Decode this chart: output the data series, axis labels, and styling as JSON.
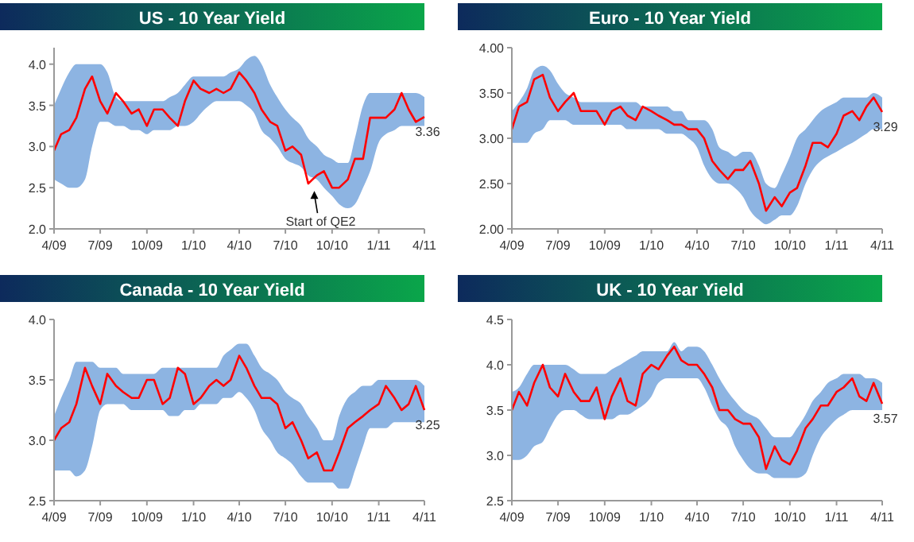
{
  "chart_data": [
    {
      "type": "line",
      "title": "US - 10 Year Yield",
      "x": [
        "2009-04-01",
        "2009-04-15",
        "2009-05-01",
        "2009-05-15",
        "2009-06-01",
        "2009-06-15",
        "2009-07-01",
        "2009-07-15",
        "2009-08-01",
        "2009-08-15",
        "2009-09-01",
        "2009-09-15",
        "2009-10-01",
        "2009-10-15",
        "2009-11-01",
        "2009-11-15",
        "2009-12-01",
        "2009-12-15",
        "2010-01-01",
        "2010-01-15",
        "2010-02-01",
        "2010-02-15",
        "2010-03-01",
        "2010-03-15",
        "2010-04-01",
        "2010-04-15",
        "2010-05-01",
        "2010-05-15",
        "2010-06-01",
        "2010-06-15",
        "2010-07-01",
        "2010-07-15",
        "2010-08-01",
        "2010-08-15",
        "2010-09-01",
        "2010-09-15",
        "2010-10-01",
        "2010-10-15",
        "2010-11-01",
        "2010-11-15",
        "2010-12-01",
        "2010-12-15",
        "2011-01-01",
        "2011-01-15",
        "2011-02-01",
        "2011-02-15",
        "2011-03-01",
        "2011-03-15",
        "2011-04-01"
      ],
      "xlim": [
        "2009-04-01",
        "2011-04-01"
      ],
      "xticks": [
        {
          "value": "2009-04-01",
          "label": "4/09"
        },
        {
          "value": "2009-07-01",
          "label": "7/09"
        },
        {
          "value": "2009-10-01",
          "label": "10/09"
        },
        {
          "value": "2010-01-01",
          "label": "1/10"
        },
        {
          "value": "2010-04-01",
          "label": "4/10"
        },
        {
          "value": "2010-07-01",
          "label": "7/10"
        },
        {
          "value": "2010-10-01",
          "label": "10/10"
        },
        {
          "value": "2011-01-01",
          "label": "1/11"
        },
        {
          "value": "2011-04-01",
          "label": "4/11"
        }
      ],
      "ylim": [
        2.0,
        4.2
      ],
      "yticks": [
        {
          "value": 2,
          "label": "2.0"
        },
        2.5,
        {
          "value": 3,
          "label": "3.0"
        },
        3.5,
        {
          "value": 4,
          "label": "4.0"
        }
      ],
      "series": [
        {
          "color": "#ff0000",
          "values": [
            2.95,
            3.15,
            3.2,
            3.35,
            3.7,
            3.85,
            3.55,
            3.4,
            3.65,
            3.55,
            3.4,
            3.45,
            3.25,
            3.45,
            3.45,
            3.35,
            3.25,
            3.55,
            3.8,
            3.7,
            3.65,
            3.7,
            3.65,
            3.7,
            3.9,
            3.8,
            3.65,
            3.45,
            3.3,
            3.25,
            2.95,
            3.0,
            2.9,
            2.55,
            2.65,
            2.7,
            2.5,
            2.5,
            2.6,
            2.85,
            2.85,
            3.35,
            3.35,
            3.35,
            3.45,
            3.65,
            3.45,
            3.3,
            3.36
          ],
          "upper": [
            3.5,
            3.7,
            3.9,
            4.0,
            4.0,
            4.0,
            4.0,
            3.9,
            3.6,
            3.55,
            3.55,
            3.55,
            3.55,
            3.55,
            3.55,
            3.6,
            3.65,
            3.75,
            3.85,
            3.85,
            3.85,
            3.85,
            3.85,
            3.9,
            3.95,
            4.05,
            4.1,
            4.0,
            3.75,
            3.6,
            3.45,
            3.35,
            3.25,
            3.1,
            3.0,
            2.9,
            2.85,
            2.8,
            2.8,
            3.1,
            3.5,
            3.65,
            3.65,
            3.65,
            3.65,
            3.65,
            3.65,
            3.65,
            3.6
          ],
          "lower": [
            2.6,
            2.55,
            2.5,
            2.5,
            2.6,
            3.0,
            3.3,
            3.3,
            3.25,
            3.25,
            3.2,
            3.2,
            3.15,
            3.2,
            3.2,
            3.2,
            3.25,
            3.25,
            3.3,
            3.4,
            3.5,
            3.55,
            3.55,
            3.55,
            3.55,
            3.5,
            3.4,
            3.2,
            3.1,
            3.0,
            2.85,
            2.8,
            2.75,
            2.65,
            2.6,
            2.5,
            2.4,
            2.3,
            2.25,
            2.3,
            2.5,
            2.7,
            3.05,
            3.15,
            3.2,
            3.25,
            3.25,
            3.25,
            3.25
          ]
        }
      ],
      "annotations": [
        {
          "text": "3.36",
          "x": "2011-04-01",
          "y": 3.36
        },
        {
          "text": "Start of QE2",
          "x": "2010-08-27",
          "y": 2.5
        }
      ]
    },
    {
      "type": "line",
      "title": "Euro - 10 Year Yield",
      "x": [
        "2009-04-01",
        "2009-04-15",
        "2009-05-01",
        "2009-05-15",
        "2009-06-01",
        "2009-06-15",
        "2009-07-01",
        "2009-07-15",
        "2009-08-01",
        "2009-08-15",
        "2009-09-01",
        "2009-09-15",
        "2009-10-01",
        "2009-10-15",
        "2009-11-01",
        "2009-11-15",
        "2009-12-01",
        "2009-12-15",
        "2010-01-01",
        "2010-01-15",
        "2010-02-01",
        "2010-02-15",
        "2010-03-01",
        "2010-03-15",
        "2010-04-01",
        "2010-04-15",
        "2010-05-01",
        "2010-05-15",
        "2010-06-01",
        "2010-06-15",
        "2010-07-01",
        "2010-07-15",
        "2010-08-01",
        "2010-08-15",
        "2010-09-01",
        "2010-09-15",
        "2010-10-01",
        "2010-10-15",
        "2010-11-01",
        "2010-11-15",
        "2010-12-01",
        "2010-12-15",
        "2011-01-01",
        "2011-01-15",
        "2011-02-01",
        "2011-02-15",
        "2011-03-01",
        "2011-03-15",
        "2011-04-01"
      ],
      "xlim": [
        "2009-04-01",
        "2011-04-01"
      ],
      "xticks": [
        {
          "value": "2009-04-01",
          "label": "4/09"
        },
        {
          "value": "2009-07-01",
          "label": "7/09"
        },
        {
          "value": "2009-10-01",
          "label": "10/09"
        },
        {
          "value": "2010-01-01",
          "label": "1/10"
        },
        {
          "value": "2010-04-01",
          "label": "4/10"
        },
        {
          "value": "2010-07-01",
          "label": "7/10"
        },
        {
          "value": "2010-10-01",
          "label": "10/10"
        },
        {
          "value": "2011-01-01",
          "label": "1/11"
        },
        {
          "value": "2011-04-01",
          "label": "4/11"
        }
      ],
      "ylim": [
        2.0,
        4.0
      ],
      "yticks": [
        {
          "value": 2,
          "label": "2.00"
        },
        {
          "value": 2.5,
          "label": "2.50"
        },
        {
          "value": 3,
          "label": "3.00"
        },
        {
          "value": 3.5,
          "label": "3.50"
        },
        {
          "value": 4,
          "label": "4.00"
        }
      ],
      "series": [
        {
          "color": "#ff0000",
          "values": [
            3.1,
            3.35,
            3.4,
            3.65,
            3.7,
            3.45,
            3.3,
            3.4,
            3.5,
            3.3,
            3.3,
            3.3,
            3.15,
            3.3,
            3.35,
            3.25,
            3.2,
            3.35,
            3.3,
            3.25,
            3.2,
            3.15,
            3.15,
            3.1,
            3.1,
            3.0,
            2.75,
            2.65,
            2.55,
            2.65,
            2.65,
            2.75,
            2.5,
            2.2,
            2.35,
            2.25,
            2.4,
            2.45,
            2.7,
            2.95,
            2.95,
            2.9,
            3.05,
            3.25,
            3.3,
            3.2,
            3.35,
            3.45,
            3.29
          ],
          "upper": [
            3.3,
            3.4,
            3.55,
            3.75,
            3.8,
            3.75,
            3.6,
            3.5,
            3.45,
            3.4,
            3.4,
            3.4,
            3.4,
            3.4,
            3.4,
            3.4,
            3.4,
            3.35,
            3.35,
            3.35,
            3.35,
            3.3,
            3.3,
            3.2,
            3.2,
            3.2,
            3.1,
            2.9,
            2.85,
            2.8,
            2.85,
            2.85,
            2.7,
            2.5,
            2.45,
            2.6,
            2.8,
            3.0,
            3.1,
            3.2,
            3.3,
            3.35,
            3.4,
            3.45,
            3.45,
            3.45,
            3.45,
            3.5,
            3.45
          ],
          "lower": [
            2.95,
            2.95,
            2.95,
            3.05,
            3.1,
            3.2,
            3.2,
            3.2,
            3.15,
            3.15,
            3.15,
            3.15,
            3.15,
            3.15,
            3.15,
            3.1,
            3.1,
            3.1,
            3.1,
            3.1,
            3.05,
            3.05,
            3.05,
            3.0,
            2.9,
            2.7,
            2.55,
            2.5,
            2.5,
            2.45,
            2.35,
            2.2,
            2.1,
            2.05,
            2.1,
            2.15,
            2.15,
            2.25,
            2.5,
            2.65,
            2.75,
            2.8,
            2.85,
            2.9,
            2.95,
            3.0,
            3.05,
            3.1,
            3.1
          ]
        }
      ],
      "annotations": [
        {
          "text": "3.29",
          "x": "2011-04-01",
          "y": 3.29
        }
      ]
    },
    {
      "type": "line",
      "title": "Canada - 10 Year Yield",
      "x": [
        "2009-04-01",
        "2009-04-15",
        "2009-05-01",
        "2009-05-15",
        "2009-06-01",
        "2009-06-15",
        "2009-07-01",
        "2009-07-15",
        "2009-08-01",
        "2009-08-15",
        "2009-09-01",
        "2009-09-15",
        "2009-10-01",
        "2009-10-15",
        "2009-11-01",
        "2009-11-15",
        "2009-12-01",
        "2009-12-15",
        "2010-01-01",
        "2010-01-15",
        "2010-02-01",
        "2010-02-15",
        "2010-03-01",
        "2010-03-15",
        "2010-04-01",
        "2010-04-15",
        "2010-05-01",
        "2010-05-15",
        "2010-06-01",
        "2010-06-15",
        "2010-07-01",
        "2010-07-15",
        "2010-08-01",
        "2010-08-15",
        "2010-09-01",
        "2010-09-15",
        "2010-10-01",
        "2010-10-15",
        "2010-11-01",
        "2010-11-15",
        "2010-12-01",
        "2010-12-15",
        "2011-01-01",
        "2011-01-15",
        "2011-02-01",
        "2011-02-15",
        "2011-03-01",
        "2011-03-15",
        "2011-04-01"
      ],
      "xlim": [
        "2009-04-01",
        "2011-04-01"
      ],
      "xticks": [
        {
          "value": "2009-04-01",
          "label": "4/09"
        },
        {
          "value": "2009-07-01",
          "label": "7/09"
        },
        {
          "value": "2009-10-01",
          "label": "10/09"
        },
        {
          "value": "2010-01-01",
          "label": "1/10"
        },
        {
          "value": "2010-04-01",
          "label": "4/10"
        },
        {
          "value": "2010-07-01",
          "label": "7/10"
        },
        {
          "value": "2010-10-01",
          "label": "10/10"
        },
        {
          "value": "2011-01-01",
          "label": "1/11"
        },
        {
          "value": "2011-04-01",
          "label": "4/11"
        }
      ],
      "ylim": [
        2.5,
        4.0
      ],
      "yticks": [
        2.5,
        {
          "value": 3,
          "label": "3.0"
        },
        3.5,
        {
          "value": 4,
          "label": "4.0"
        }
      ],
      "series": [
        {
          "color": "#ff0000",
          "values": [
            3.0,
            3.1,
            3.15,
            3.3,
            3.6,
            3.45,
            3.3,
            3.55,
            3.45,
            3.4,
            3.35,
            3.35,
            3.5,
            3.5,
            3.3,
            3.35,
            3.6,
            3.55,
            3.3,
            3.35,
            3.45,
            3.5,
            3.45,
            3.5,
            3.7,
            3.6,
            3.45,
            3.35,
            3.35,
            3.3,
            3.1,
            3.15,
            3.0,
            2.85,
            2.9,
            2.75,
            2.75,
            2.9,
            3.1,
            3.15,
            3.2,
            3.25,
            3.3,
            3.45,
            3.35,
            3.25,
            3.3,
            3.45,
            3.25
          ],
          "upper": [
            3.2,
            3.35,
            3.5,
            3.65,
            3.65,
            3.65,
            3.6,
            3.6,
            3.6,
            3.55,
            3.55,
            3.55,
            3.55,
            3.55,
            3.6,
            3.6,
            3.6,
            3.6,
            3.6,
            3.6,
            3.6,
            3.6,
            3.7,
            3.75,
            3.8,
            3.8,
            3.7,
            3.6,
            3.55,
            3.5,
            3.4,
            3.35,
            3.3,
            3.2,
            3.1,
            3.0,
            3.0,
            3.2,
            3.35,
            3.4,
            3.45,
            3.45,
            3.5,
            3.5,
            3.5,
            3.5,
            3.5,
            3.5,
            3.45
          ],
          "lower": [
            2.75,
            2.75,
            2.75,
            2.7,
            2.75,
            2.95,
            3.25,
            3.3,
            3.3,
            3.3,
            3.25,
            3.25,
            3.25,
            3.25,
            3.25,
            3.2,
            3.2,
            3.25,
            3.25,
            3.3,
            3.3,
            3.3,
            3.35,
            3.35,
            3.4,
            3.35,
            3.25,
            3.1,
            3.0,
            2.9,
            2.85,
            2.8,
            2.7,
            2.65,
            2.65,
            2.65,
            2.65,
            2.6,
            2.6,
            2.75,
            2.95,
            3.1,
            3.1,
            3.1,
            3.15,
            3.15,
            3.15,
            3.15,
            3.15
          ]
        }
      ],
      "annotations": [
        {
          "text": "3.25",
          "x": "2011-04-01",
          "y": 3.25
        }
      ]
    },
    {
      "type": "line",
      "title": "UK - 10 Year Yield",
      "x": [
        "2009-04-01",
        "2009-04-15",
        "2009-05-01",
        "2009-05-15",
        "2009-06-01",
        "2009-06-15",
        "2009-07-01",
        "2009-07-15",
        "2009-08-01",
        "2009-08-15",
        "2009-09-01",
        "2009-09-15",
        "2009-10-01",
        "2009-10-15",
        "2009-11-01",
        "2009-11-15",
        "2009-12-01",
        "2009-12-15",
        "2010-01-01",
        "2010-01-15",
        "2010-02-01",
        "2010-02-15",
        "2010-03-01",
        "2010-03-15",
        "2010-04-01",
        "2010-04-15",
        "2010-05-01",
        "2010-05-15",
        "2010-06-01",
        "2010-06-15",
        "2010-07-01",
        "2010-07-15",
        "2010-08-01",
        "2010-08-15",
        "2010-09-01",
        "2010-09-15",
        "2010-10-01",
        "2010-10-15",
        "2010-11-01",
        "2010-11-15",
        "2010-12-01",
        "2010-12-15",
        "2011-01-01",
        "2011-01-15",
        "2011-02-01",
        "2011-02-15",
        "2011-03-01",
        "2011-03-15",
        "2011-04-01"
      ],
      "xlim": [
        "2009-04-01",
        "2011-04-01"
      ],
      "xticks": [
        {
          "value": "2009-04-01",
          "label": "4/09"
        },
        {
          "value": "2009-07-01",
          "label": "7/09"
        },
        {
          "value": "2009-10-01",
          "label": "10/09"
        },
        {
          "value": "2010-01-01",
          "label": "1/10"
        },
        {
          "value": "2010-04-01",
          "label": "4/10"
        },
        {
          "value": "2010-07-01",
          "label": "7/10"
        },
        {
          "value": "2010-10-01",
          "label": "10/10"
        },
        {
          "value": "2011-01-01",
          "label": "1/11"
        },
        {
          "value": "2011-04-01",
          "label": "4/11"
        }
      ],
      "ylim": [
        2.5,
        4.5
      ],
      "yticks": [
        2.5,
        {
          "value": 3,
          "label": "3.0"
        },
        3.5,
        {
          "value": 4,
          "label": "4.0"
        },
        4.5
      ],
      "series": [
        {
          "color": "#ff0000",
          "values": [
            3.5,
            3.7,
            3.55,
            3.8,
            4.0,
            3.75,
            3.65,
            3.9,
            3.7,
            3.6,
            3.6,
            3.75,
            3.4,
            3.65,
            3.85,
            3.6,
            3.55,
            3.9,
            4.0,
            3.95,
            4.1,
            4.2,
            4.05,
            4.0,
            4.0,
            3.9,
            3.75,
            3.5,
            3.5,
            3.4,
            3.35,
            3.35,
            3.2,
            2.85,
            3.1,
            2.95,
            2.9,
            3.05,
            3.3,
            3.4,
            3.55,
            3.55,
            3.7,
            3.75,
            3.85,
            3.65,
            3.6,
            3.8,
            3.57
          ],
          "upper": [
            3.7,
            3.75,
            3.9,
            4.0,
            4.0,
            4.0,
            4.0,
            4.0,
            3.95,
            3.9,
            3.9,
            3.9,
            3.9,
            3.95,
            4.0,
            4.05,
            4.1,
            4.15,
            4.15,
            4.15,
            4.15,
            4.25,
            4.15,
            4.2,
            4.2,
            4.15,
            4.0,
            3.85,
            3.7,
            3.6,
            3.5,
            3.45,
            3.4,
            3.3,
            3.2,
            3.2,
            3.2,
            3.3,
            3.45,
            3.6,
            3.7,
            3.8,
            3.85,
            3.9,
            3.9,
            3.9,
            3.85,
            3.85,
            3.8
          ],
          "lower": [
            2.95,
            2.95,
            3.0,
            3.1,
            3.15,
            3.3,
            3.45,
            3.5,
            3.5,
            3.45,
            3.4,
            3.4,
            3.4,
            3.4,
            3.45,
            3.45,
            3.5,
            3.55,
            3.65,
            3.8,
            3.85,
            3.85,
            3.85,
            3.85,
            3.85,
            3.75,
            3.55,
            3.4,
            3.3,
            3.1,
            2.95,
            2.85,
            2.8,
            2.8,
            2.75,
            2.75,
            2.75,
            2.75,
            2.8,
            3.0,
            3.2,
            3.3,
            3.4,
            3.45,
            3.5,
            3.5,
            3.5,
            3.5,
            3.5
          ]
        }
      ],
      "annotations": [
        {
          "text": "3.57",
          "x": "2011-04-01",
          "y": 3.57
        }
      ]
    }
  ]
}
